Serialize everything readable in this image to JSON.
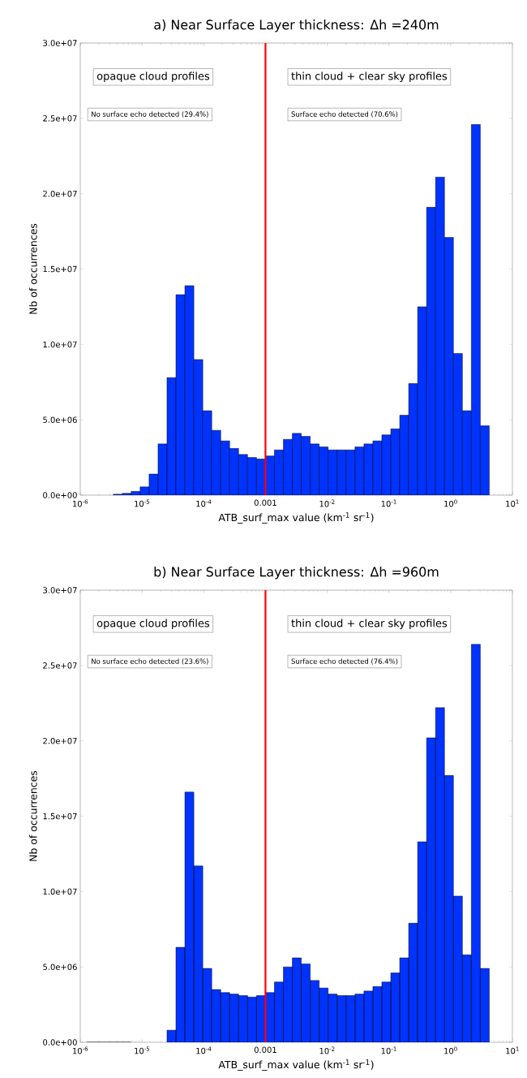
{
  "chart_data": [
    {
      "type": "histogram",
      "title": "a) Near Surface Layer thickness: Δh =240m",
      "xlabel": "ATB_surf_max value (km$^{-1}$ sr$^{-1}$)",
      "ylabel": "Nb of occurrences",
      "color": "#0033ff",
      "log": "x",
      "bins": [
        1.259e-06,
        1.758e-06,
        2.455e-06,
        3.428e-06,
        4.786e-06,
        6.683e-06,
        9.333e-06,
        1.303e-05,
        1.82e-05,
        2.541e-05,
        3.548e-05,
        4.955e-05,
        6.918e-05,
        9.661e-05,
        0.0001349,
        0.0001884,
        0.000263,
        0.0003673,
        0.0005129,
        0.0007161,
        0.001,
        0.001396,
        0.00195,
        0.002723,
        0.003802,
        0.005309,
        0.007413,
        0.01035,
        0.01445,
        0.02018,
        0.02818,
        0.03936,
        0.05495,
        0.07674,
        0.1072,
        0.1496,
        0.2089,
        0.2917,
        0.4074,
        0.5689,
        0.7943,
        1.109,
        1.549,
        2.163,
        3.02,
        4.217
      ],
      "values": [
        10000.0,
        null,
        null,
        60000.0,
        120000.0,
        250000.0,
        550000.0,
        1400000.0,
        3400000.0,
        7800000.0,
        13300000.0,
        13900000.0,
        9000000.0,
        5600000.0,
        4300000.0,
        3600000.0,
        3100000.0,
        2700000.0,
        2500000.0,
        2400000.0,
        2600000.0,
        3000000.0,
        3700000.0,
        4100000.0,
        3900000.0,
        3400000.0,
        3200000.0,
        3000000.0,
        3000000.0,
        3000000.0,
        3200000.0,
        3400000.0,
        3600000.0,
        4000000.0,
        4400000.0,
        5300000.0,
        7400000.0,
        12500000.0,
        19100000.0,
        21100000.0,
        17100000.0,
        9400000.0,
        5600000.0,
        24600000.0,
        4600000.0
      ],
      "xlim": [
        1e-06,
        10
      ],
      "ylim": [
        0,
        30000000.0
      ],
      "xticks": [
        {
          "value": 1e-06,
          "label": "10$^{-6}$"
        },
        {
          "value": 1e-05,
          "label": "10$^{-5}$"
        },
        {
          "value": 0.0001,
          "label": "10$^{-4}$"
        },
        {
          "value": 0.001,
          "label": "0.001"
        },
        {
          "value": 0.01,
          "label": "10$^{-2}$"
        },
        {
          "value": 0.1,
          "label": "10$^{-1}$"
        },
        {
          "value": 1,
          "label": "10$^{0}$"
        },
        {
          "value": 10,
          "label": "10$^{1}$"
        }
      ],
      "yticks": [
        {
          "value": 0,
          "label": "0.0e+00"
        },
        {
          "value": 5000000.0,
          "label": "5.0e+06"
        },
        {
          "value": 10000000.0,
          "label": "1.0e+07"
        },
        {
          "value": 15000000.0,
          "label": "1.5e+07"
        },
        {
          "value": 20000000.0,
          "label": "2.0e+07"
        },
        {
          "value": 25000000.0,
          "label": "2.5e+07"
        },
        {
          "value": 30000000.0,
          "label": "3.0e+07"
        }
      ],
      "ref_lines": [
        {
          "axis": "x",
          "value": 0.001,
          "color": "#ff0000"
        }
      ],
      "annotations": [
        "opaque cloud profiles",
        "No surface echo detected (29.4%)",
        "thin cloud + clear sky profiles",
        "Surface echo detected (70.6%)"
      ]
    },
    {
      "type": "histogram",
      "title": "b) Near Surface Layer thickness: Δh =960m",
      "xlabel": "ATB_surf_max value (km$^{-1}$ sr$^{-1}$)",
      "ylabel": "Nb of occurrences",
      "color": "#0033ff",
      "log": "x",
      "bins": [
        1.259e-06,
        1.758e-06,
        2.455e-06,
        3.428e-06,
        4.786e-06,
        6.683e-06,
        9.333e-06,
        1.303e-05,
        1.82e-05,
        2.541e-05,
        3.548e-05,
        4.955e-05,
        6.918e-05,
        9.661e-05,
        0.0001349,
        0.0001884,
        0.000263,
        0.0003673,
        0.0005129,
        0.0007161,
        0.001,
        0.001396,
        0.00195,
        0.002723,
        0.003802,
        0.005309,
        0.007413,
        0.01035,
        0.01445,
        0.02018,
        0.02818,
        0.03936,
        0.05495,
        0.07674,
        0.1072,
        0.1496,
        0.2089,
        0.2917,
        0.4074,
        0.5689,
        0.7943,
        1.109,
        1.549,
        2.163,
        3.02,
        4.217
      ],
      "values": [
        0,
        0,
        0,
        0,
        0,
        0,
        null,
        null,
        null,
        800000.0,
        6300000.0,
        16600000.0,
        11700000.0,
        4900000.0,
        3500000.0,
        3300000.0,
        3200000.0,
        3100000.0,
        3000000.0,
        3100000.0,
        3300000.0,
        4000000.0,
        5000000.0,
        5600000.0,
        5200000.0,
        4100000.0,
        3600000.0,
        3200000.0,
        3100000.0,
        3100000.0,
        3200000.0,
        3400000.0,
        3700000.0,
        4000000.0,
        4600000.0,
        5600000.0,
        7900000.0,
        13300000.0,
        20200000.0,
        22200000.0,
        17700000.0,
        9700000.0,
        5800000.0,
        26400000.0,
        4900000.0
      ],
      "xlim": [
        1e-06,
        10
      ],
      "ylim": [
        0,
        30000000.0
      ],
      "xticks": [
        {
          "value": 1e-06,
          "label": "10$^{-6}$"
        },
        {
          "value": 1e-05,
          "label": "10$^{-5}$"
        },
        {
          "value": 0.0001,
          "label": "10$^{-4}$"
        },
        {
          "value": 0.001,
          "label": "0.001"
        },
        {
          "value": 0.01,
          "label": "10$^{-2}$"
        },
        {
          "value": 0.1,
          "label": "10$^{-1}$"
        },
        {
          "value": 1,
          "label": "10$^{0}$"
        },
        {
          "value": 10,
          "label": "10$^{1}$"
        }
      ],
      "yticks": [
        {
          "value": 0,
          "label": "0.0e+00"
        },
        {
          "value": 5000000.0,
          "label": "5.0e+06"
        },
        {
          "value": 10000000.0,
          "label": "1.0e+07"
        },
        {
          "value": 15000000.0,
          "label": "1.5e+07"
        },
        {
          "value": 20000000.0,
          "label": "2.0e+07"
        },
        {
          "value": 25000000.0,
          "label": "2.5e+07"
        },
        {
          "value": 30000000.0,
          "label": "3.0e+07"
        }
      ],
      "ref_lines": [
        {
          "axis": "x",
          "value": 0.001,
          "color": "#ff0000"
        }
      ],
      "annotations": [
        "opaque cloud profiles",
        "No surface echo detected (23.6%)",
        "thin cloud + clear sky profiles",
        "Surface echo detected (76.4%)"
      ]
    }
  ]
}
